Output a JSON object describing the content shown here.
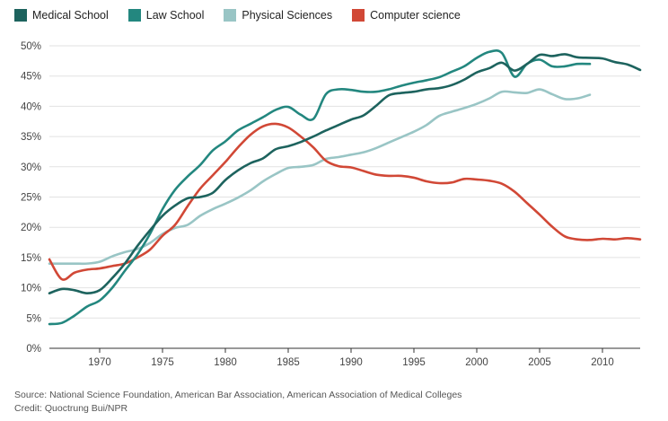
{
  "chart_data": {
    "type": "line",
    "title": "",
    "xlabel": "",
    "ylabel": "",
    "xlim": [
      1966,
      2013
    ],
    "ylim": [
      0,
      50
    ],
    "x_ticks": [
      1970,
      1975,
      1980,
      1985,
      1990,
      1995,
      2000,
      2005,
      2010
    ],
    "y_ticks": [
      0,
      5,
      10,
      15,
      20,
      25,
      30,
      35,
      40,
      45,
      50
    ],
    "y_tick_labels": [
      "0%",
      "5%",
      "10%",
      "15%",
      "20%",
      "25%",
      "30%",
      "35%",
      "40%",
      "45%",
      "50%"
    ],
    "grid": "horizontal",
    "legend_position": "top-left",
    "series": [
      {
        "name": "Medical School",
        "color": "#1d635e",
        "x": [
          1966,
          1967,
          1968,
          1969,
          1970,
          1971,
          1972,
          1973,
          1974,
          1975,
          1976,
          1977,
          1978,
          1979,
          1980,
          1981,
          1982,
          1983,
          1984,
          1985,
          1986,
          1987,
          1988,
          1989,
          1990,
          1991,
          1992,
          1993,
          1994,
          1995,
          1996,
          1997,
          1998,
          1999,
          2000,
          2001,
          2002,
          2003,
          2004,
          2005,
          2006,
          2007,
          2008,
          2009,
          2010,
          2011,
          2012,
          2013
        ],
        "values": [
          9.1,
          9.8,
          9.6,
          9.1,
          9.6,
          11.6,
          14.0,
          16.9,
          19.5,
          21.9,
          23.6,
          24.8,
          25.0,
          25.7,
          27.8,
          29.4,
          30.6,
          31.4,
          32.9,
          33.4,
          34.1,
          35.0,
          36.0,
          36.9,
          37.8,
          38.5,
          40.1,
          41.8,
          42.2,
          42.4,
          42.8,
          43.0,
          43.5,
          44.4,
          45.6,
          46.3,
          47.2,
          45.9,
          47.0,
          48.5,
          48.3,
          48.6,
          48.1,
          48.0,
          47.9,
          47.3,
          46.9,
          46.0
        ]
      },
      {
        "name": "Law School",
        "color": "#23877f",
        "x": [
          1966,
          1967,
          1968,
          1969,
          1970,
          1971,
          1972,
          1973,
          1974,
          1975,
          1976,
          1977,
          1978,
          1979,
          1980,
          1981,
          1982,
          1983,
          1984,
          1985,
          1986,
          1987,
          1988,
          1989,
          1990,
          1991,
          1992,
          1993,
          1994,
          1995,
          1996,
          1997,
          1998,
          1999,
          2000,
          2001,
          2002,
          2003,
          2004,
          2005,
          2006,
          2007,
          2008,
          2009
        ],
        "values": [
          4.0,
          4.2,
          5.4,
          6.9,
          7.9,
          10.0,
          12.8,
          15.5,
          18.9,
          23.0,
          26.2,
          28.4,
          30.3,
          32.7,
          34.2,
          36.0,
          37.1,
          38.2,
          39.4,
          39.9,
          38.6,
          37.9,
          42.0,
          42.8,
          42.7,
          42.4,
          42.4,
          42.8,
          43.4,
          43.9,
          44.3,
          44.8,
          45.7,
          46.6,
          48.0,
          49.0,
          48.8,
          44.9,
          47.0,
          47.7,
          46.6,
          46.6,
          47.0,
          47.0
        ]
      },
      {
        "name": "Physical Sciences",
        "color": "#99c5c5",
        "x": [
          1966,
          1967,
          1968,
          1969,
          1970,
          1971,
          1972,
          1973,
          1974,
          1975,
          1976,
          1977,
          1978,
          1979,
          1980,
          1981,
          1982,
          1983,
          1984,
          1985,
          1986,
          1987,
          1988,
          1989,
          1990,
          1991,
          1992,
          1993,
          1994,
          1995,
          1996,
          1997,
          1998,
          1999,
          2000,
          2001,
          2002,
          2003,
          2004,
          2005,
          2006,
          2007,
          2008,
          2009
        ],
        "values": [
          14.0,
          14.0,
          14.0,
          14.0,
          14.3,
          15.2,
          15.9,
          16.4,
          17.4,
          18.9,
          19.9,
          20.4,
          21.9,
          23.0,
          23.9,
          24.9,
          26.1,
          27.6,
          28.8,
          29.8,
          30.0,
          30.3,
          31.3,
          31.6,
          32.0,
          32.4,
          33.1,
          34.0,
          34.9,
          35.8,
          36.9,
          38.4,
          39.1,
          39.7,
          40.4,
          41.3,
          42.4,
          42.3,
          42.2,
          42.8,
          42.0,
          41.2,
          41.3,
          41.9
        ]
      },
      {
        "name": "Computer science",
        "color": "#d14836",
        "x": [
          1966,
          1967,
          1968,
          1969,
          1970,
          1971,
          1972,
          1973,
          1974,
          1975,
          1976,
          1977,
          1978,
          1979,
          1980,
          1981,
          1982,
          1983,
          1984,
          1985,
          1986,
          1987,
          1988,
          1989,
          1990,
          1991,
          1992,
          1993,
          1994,
          1995,
          1996,
          1997,
          1998,
          1999,
          2000,
          2001,
          2002,
          2003,
          2004,
          2005,
          2006,
          2007,
          2008,
          2009,
          2010,
          2011,
          2012,
          2013
        ],
        "values": [
          14.7,
          11.4,
          12.5,
          13.0,
          13.2,
          13.6,
          14.0,
          15.0,
          16.3,
          18.6,
          20.4,
          23.5,
          26.4,
          28.6,
          30.8,
          33.2,
          35.3,
          36.7,
          37.1,
          36.5,
          35.0,
          33.2,
          31.0,
          30.1,
          29.9,
          29.3,
          28.7,
          28.5,
          28.5,
          28.2,
          27.6,
          27.3,
          27.4,
          28.0,
          27.9,
          27.7,
          27.2,
          25.9,
          24.0,
          22.1,
          20.1,
          18.5,
          18.0,
          17.9,
          18.1,
          18.0,
          18.2,
          18.0
        ]
      }
    ]
  },
  "footer": {
    "source": "Source: National Science Foundation, American Bar Association, American Association of Medical Colleges",
    "credit": "Credit: Quoctrung Bui/NPR"
  }
}
